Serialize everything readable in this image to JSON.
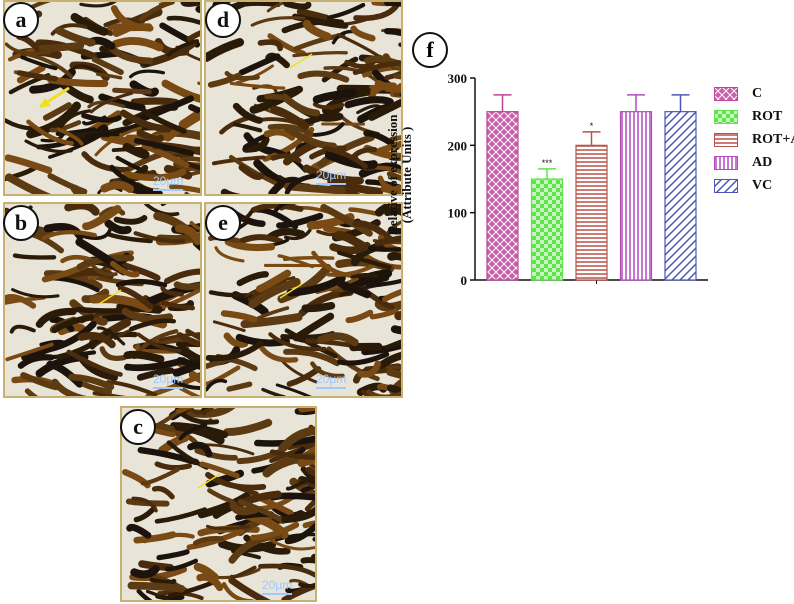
{
  "panels": {
    "a": {
      "label": "a",
      "scale": "20µm"
    },
    "b": {
      "label": "b",
      "scale": "20µm"
    },
    "c": {
      "label": "c",
      "scale": "20µm"
    },
    "d": {
      "label": "d",
      "scale": "20µm"
    },
    "e": {
      "label": "e",
      "scale": "20µm"
    }
  },
  "chart_label": "f",
  "colors": {
    "C": "#c0429a",
    "ROT": "#5ee44a",
    "ROT+AD": "#b8524a",
    "AD": "#b44cc0",
    "VC": "#4c56b8"
  },
  "chart_data": {
    "type": "bar",
    "categories": [
      "C",
      "ROT",
      "ROT+AD",
      "AD",
      "VC"
    ],
    "values": [
      250,
      150,
      200,
      250,
      250
    ],
    "errors": [
      25,
      15,
      20,
      25,
      25
    ],
    "significance": [
      "",
      "***",
      "*",
      "",
      ""
    ],
    "ylabel_line1": "Relative of expression",
    "ylabel_line2": "(Attribute Units )",
    "ylim": [
      0,
      300
    ],
    "yticks": [
      "0",
      "100",
      "200",
      "300"
    ],
    "patterns": [
      "crosshatch",
      "checker",
      "horizontal",
      "vertical",
      "diagonal"
    ],
    "legend": [
      "C",
      "ROT",
      "ROT+AD",
      "AD",
      "VC"
    ],
    "legend_position": "right"
  }
}
